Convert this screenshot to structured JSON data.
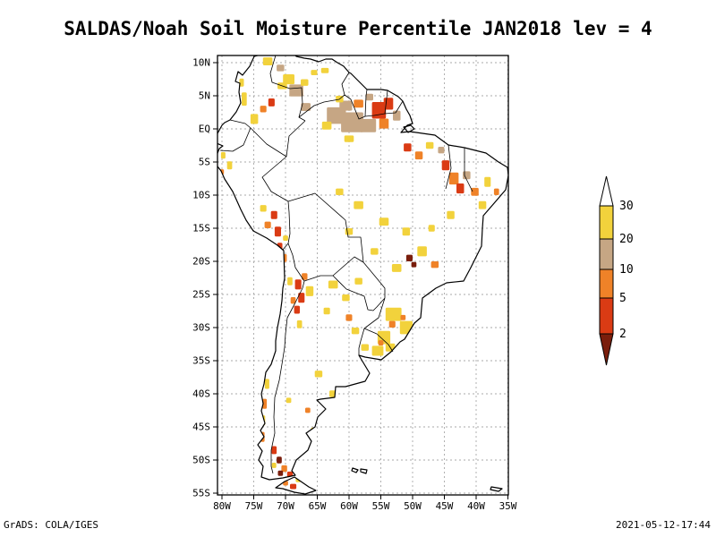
{
  "title": "SALDAS/Noah Soil Moisture Percentile JAN2018 lev = 4",
  "footer": {
    "left": "GrADS: COLA/IGES",
    "right": "2021-05-12-17:44"
  },
  "map": {
    "lat_labels": [
      "10N",
      "5N",
      "EQ",
      "5S",
      "10S",
      "15S",
      "20S",
      "25S",
      "30S",
      "35S",
      "40S",
      "45S",
      "50S",
      "55S"
    ],
    "lon_labels": [
      "80W",
      "75W",
      "70W",
      "65W",
      "60W",
      "55W",
      "50W",
      "45W",
      "40W",
      "35W"
    ],
    "patches": [
      [
        -72.8,
        10.2,
        1.5,
        1.2,
        "30"
      ],
      [
        -70.8,
        9.2,
        1.2,
        1.0,
        "20"
      ],
      [
        -69.5,
        7.5,
        1.8,
        1.5,
        "30"
      ],
      [
        -68.3,
        5.8,
        2.2,
        1.8,
        "20"
      ],
      [
        -67.0,
        7.0,
        1.2,
        1.0,
        "30"
      ],
      [
        -72.2,
        4.0,
        1.0,
        1.2,
        "5"
      ],
      [
        -73.5,
        3.0,
        1.0,
        1.0,
        "10"
      ],
      [
        -74.9,
        1.5,
        1.2,
        1.5,
        "30"
      ],
      [
        -76.5,
        4.5,
        0.8,
        2.0,
        "30"
      ],
      [
        -76.9,
        7.0,
        0.7,
        1.2,
        "30"
      ],
      [
        -66.8,
        3.3,
        1.5,
        1.2,
        "20"
      ],
      [
        -65.5,
        8.5,
        1.0,
        0.8,
        "30"
      ],
      [
        -63.8,
        8.8,
        1.2,
        0.8,
        "30"
      ],
      [
        -70.5,
        6.5,
        1.5,
        1.0,
        "30"
      ],
      [
        -62.0,
        2.0,
        3.0,
        2.5,
        "20"
      ],
      [
        -59.5,
        1.0,
        3.5,
        3.0,
        "20"
      ],
      [
        -60.5,
        3.5,
        2.0,
        1.5,
        "20"
      ],
      [
        -57.0,
        0.5,
        2.5,
        2.0,
        "20"
      ],
      [
        -55.3,
        2.8,
        2.2,
        2.5,
        "5"
      ],
      [
        -53.8,
        3.8,
        1.5,
        1.8,
        "5"
      ],
      [
        -54.5,
        0.8,
        1.5,
        1.5,
        "10"
      ],
      [
        -58.5,
        3.8,
        1.5,
        1.2,
        "10"
      ],
      [
        -61.5,
        4.5,
        1.2,
        1.0,
        "30"
      ],
      [
        -56.8,
        4.8,
        1.2,
        1.0,
        "20"
      ],
      [
        -52.5,
        2.0,
        1.2,
        1.5,
        "20"
      ],
      [
        -60.0,
        -1.5,
        1.5,
        1.0,
        "30"
      ],
      [
        -63.5,
        0.5,
        1.5,
        1.2,
        "30"
      ],
      [
        -50.8,
        -2.8,
        1.2,
        1.2,
        "5"
      ],
      [
        -49.0,
        -4.0,
        1.2,
        1.2,
        "10"
      ],
      [
        -47.3,
        -2.5,
        1.2,
        1.0,
        "30"
      ],
      [
        -44.8,
        -5.5,
        1.2,
        1.5,
        "5"
      ],
      [
        -43.5,
        -7.5,
        1.5,
        1.8,
        "10"
      ],
      [
        -42.5,
        -9.0,
        1.2,
        1.5,
        "5"
      ],
      [
        -41.5,
        -7.0,
        1.2,
        1.2,
        "20"
      ],
      [
        -40.2,
        -9.5,
        1.2,
        1.2,
        "10"
      ],
      [
        -39.0,
        -11.5,
        1.2,
        1.2,
        "30"
      ],
      [
        -45.5,
        -3.2,
        1.0,
        1.0,
        "20"
      ],
      [
        -38.2,
        -8.0,
        1.0,
        1.5,
        "30"
      ],
      [
        -36.8,
        -9.5,
        0.8,
        1.0,
        "10"
      ],
      [
        -61.5,
        -9.5,
        1.2,
        1.0,
        "30"
      ],
      [
        -58.5,
        -11.5,
        1.5,
        1.2,
        "30"
      ],
      [
        -54.5,
        -14.0,
        1.5,
        1.2,
        "30"
      ],
      [
        -51.0,
        -15.5,
        1.2,
        1.2,
        "30"
      ],
      [
        -48.5,
        -18.5,
        1.5,
        1.5,
        "30"
      ],
      [
        -52.5,
        -21.0,
        1.5,
        1.2,
        "30"
      ],
      [
        -56.0,
        -18.5,
        1.2,
        1.0,
        "30"
      ],
      [
        -60.0,
        -15.5,
        1.2,
        1.0,
        "30"
      ],
      [
        -50.5,
        -19.5,
        1.0,
        1.0,
        "2"
      ],
      [
        -49.8,
        -20.5,
        0.8,
        0.8,
        "2"
      ],
      [
        -47.0,
        -15.0,
        1.0,
        1.0,
        "30"
      ],
      [
        -44.0,
        -13.0,
        1.2,
        1.2,
        "30"
      ],
      [
        -46.5,
        -20.5,
        1.2,
        1.0,
        "10"
      ],
      [
        -71.8,
        -13.0,
        1.0,
        1.2,
        "5"
      ],
      [
        -71.2,
        -15.5,
        1.0,
        1.5,
        "5"
      ],
      [
        -70.9,
        -17.8,
        0.8,
        1.2,
        "5"
      ],
      [
        -72.8,
        -14.5,
        1.0,
        1.0,
        "10"
      ],
      [
        -70.2,
        -19.5,
        0.8,
        1.2,
        "10"
      ],
      [
        -73.5,
        -12.0,
        1.0,
        1.0,
        "30"
      ],
      [
        -70.0,
        -16.5,
        0.8,
        0.8,
        "30"
      ],
      [
        -78.8,
        -5.5,
        0.8,
        1.2,
        "30"
      ],
      [
        -79.8,
        -4.0,
        0.7,
        1.0,
        "30"
      ],
      [
        -80.0,
        -6.5,
        0.6,
        0.8,
        "10"
      ],
      [
        -68.0,
        -23.5,
        1.0,
        1.5,
        "5"
      ],
      [
        -67.5,
        -25.5,
        1.0,
        1.5,
        "5"
      ],
      [
        -68.2,
        -27.3,
        0.9,
        1.2,
        "5"
      ],
      [
        -67.0,
        -22.3,
        0.9,
        1.0,
        "10"
      ],
      [
        -68.8,
        -25.9,
        0.8,
        1.0,
        "10"
      ],
      [
        -66.2,
        -24.5,
        1.2,
        1.5,
        "30"
      ],
      [
        -69.3,
        -23.0,
        0.8,
        1.2,
        "30"
      ],
      [
        -67.8,
        -29.5,
        0.8,
        1.2,
        "30"
      ],
      [
        -62.5,
        -23.5,
        1.5,
        1.2,
        "30"
      ],
      [
        -60.5,
        -25.5,
        1.2,
        1.0,
        "30"
      ],
      [
        -58.5,
        -23.0,
        1.2,
        1.0,
        "30"
      ],
      [
        -63.5,
        -27.5,
        1.0,
        1.0,
        "30"
      ],
      [
        -60.0,
        -28.5,
        1.0,
        1.0,
        "10"
      ],
      [
        -59.0,
        -30.5,
        1.2,
        1.0,
        "30"
      ],
      [
        -53.0,
        -28.0,
        2.5,
        2.0,
        "30"
      ],
      [
        -51.0,
        -30.0,
        2.0,
        2.0,
        "30"
      ],
      [
        -54.5,
        -31.5,
        2.0,
        2.0,
        "30"
      ],
      [
        -55.5,
        -33.5,
        1.8,
        1.5,
        "30"
      ],
      [
        -53.5,
        -33.0,
        1.5,
        1.2,
        "30"
      ],
      [
        -53.2,
        -29.5,
        1.0,
        1.0,
        "10"
      ],
      [
        -55.0,
        -32.3,
        0.8,
        0.8,
        "10"
      ],
      [
        -51.5,
        -28.5,
        0.8,
        0.8,
        "10"
      ],
      [
        -57.5,
        -33.0,
        1.2,
        1.0,
        "30"
      ],
      [
        -64.8,
        -37.0,
        1.2,
        1.0,
        "30"
      ],
      [
        -62.5,
        -40.0,
        1.2,
        1.0,
        "30"
      ],
      [
        -66.5,
        -42.5,
        0.8,
        0.8,
        "10"
      ],
      [
        -65.5,
        -45.5,
        1.0,
        0.8,
        "30"
      ],
      [
        -69.5,
        -41.0,
        0.8,
        0.8,
        "30"
      ],
      [
        -72.9,
        -38.5,
        0.7,
        1.5,
        "30"
      ],
      [
        -73.3,
        -41.5,
        0.7,
        1.5,
        "10"
      ],
      [
        -73.5,
        -44.0,
        0.6,
        1.5,
        "30"
      ],
      [
        -73.6,
        -46.5,
        0.6,
        1.5,
        "10"
      ],
      [
        -71.8,
        -48.5,
        0.8,
        1.2,
        "5"
      ],
      [
        -71.0,
        -50.0,
        0.8,
        1.0,
        "2"
      ],
      [
        -70.2,
        -51.3,
        0.9,
        1.0,
        "10"
      ],
      [
        -69.3,
        -52.2,
        0.9,
        0.9,
        "5"
      ],
      [
        -70.8,
        -52.0,
        0.8,
        0.8,
        "2"
      ],
      [
        -68.8,
        -54.0,
        1.0,
        0.8,
        "5"
      ],
      [
        -71.8,
        -50.8,
        0.7,
        0.8,
        "30"
      ],
      [
        -70.0,
        -53.5,
        0.8,
        0.7,
        "10"
      ],
      [
        -68.0,
        -53.0,
        0.8,
        0.7,
        "30"
      ]
    ]
  },
  "legend": {
    "labels": [
      "30",
      "20",
      "10",
      "5",
      "2"
    ],
    "colors": {
      "above": "#ffffff",
      "30": "#f2d23c",
      "20": "#c6a684",
      "10": "#ef8228",
      "5": "#da3b14",
      "2": "#7a1e0c"
    }
  }
}
